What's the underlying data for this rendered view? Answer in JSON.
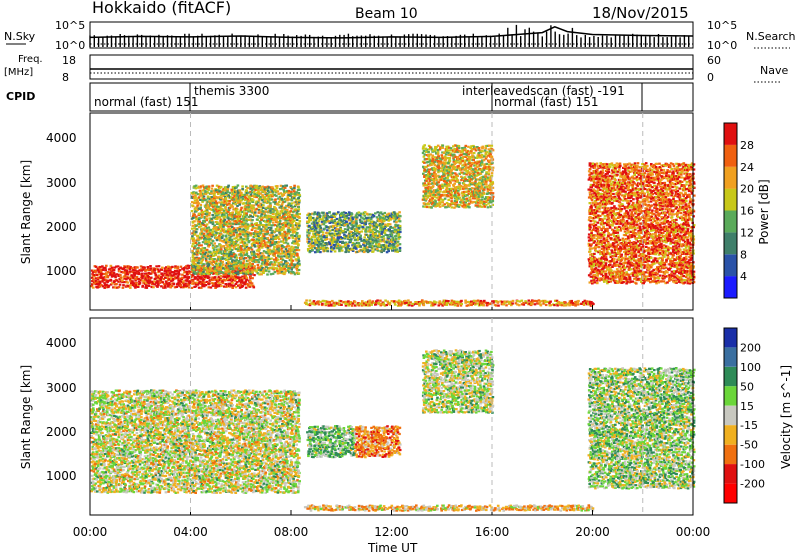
{
  "header": {
    "title": "Hokkaido (fitACF)",
    "beam": "Beam 10",
    "date": "18/Nov/2015"
  },
  "top_panel": {
    "left_label": "N.Sky",
    "left_ticks": [
      "10^5",
      "10^0"
    ],
    "right_label": "N.Search",
    "right_ticks": [
      "10^5",
      "10^0"
    ]
  },
  "freq_panel": {
    "left_label_1": "Freq.",
    "left_label_2": "[MHz]",
    "left_ticks": [
      "18",
      "8"
    ],
    "right_label": "Nave",
    "right_ticks": [
      "60",
      "0"
    ]
  },
  "cpid": {
    "label": "CPID",
    "entries": [
      {
        "text": "normal (fast) 151",
        "row": "lower"
      },
      {
        "text": "themis 3300",
        "row": "upper"
      },
      {
        "text": "interleavedscan (fast) -191",
        "row": "upper"
      },
      {
        "text": "normal (fast) 151",
        "row": "lower"
      }
    ]
  },
  "power_panel": {
    "ylabel": "Slant Range [km]",
    "yticks": [
      "1000",
      "2000",
      "3000",
      "4000"
    ],
    "colorbar_label": "Power [dB]",
    "colorbar_ticks": [
      "4",
      "8",
      "12",
      "16",
      "20",
      "24",
      "28"
    ],
    "colorbar_colors": [
      "#1b1bff",
      "#2a52a8",
      "#3f7f6a",
      "#5aaa5a",
      "#c8c819",
      "#f0a020",
      "#f06010",
      "#e01010"
    ]
  },
  "velocity_panel": {
    "ylabel": "Slant Range [km]",
    "yticks": [
      "1000",
      "2000",
      "3000",
      "4000"
    ],
    "colorbar_label": "Velocity [m s^-1]",
    "colorbar_ticks": [
      "200",
      "100",
      "50",
      "15",
      "-15",
      "-50",
      "-100",
      "-200"
    ],
    "colorbar_colors": [
      "#1a2fa8",
      "#3a6fa0",
      "#2e8b57",
      "#6bd63a",
      "#c8c8c0",
      "#f0b020",
      "#f07010",
      "#e01010",
      "#ff0000"
    ]
  },
  "xaxis": {
    "label": "Time UT",
    "ticks": [
      "00:00",
      "04:00",
      "08:00",
      "12:00",
      "16:00",
      "20:00",
      "00:00"
    ]
  },
  "chart_data": [
    {
      "type": "line",
      "title": "",
      "xlabel": "",
      "ylabel": "N.Sky",
      "x_range_hours": [
        0,
        24
      ],
      "series": [
        {
          "name": "N.Sky",
          "x": [
            0,
            2,
            4,
            6,
            8,
            10,
            12,
            14,
            16,
            17,
            18,
            18.5,
            19,
            20,
            22,
            24
          ],
          "y": [
            2,
            2.2,
            2.1,
            2.3,
            2.0,
            1.9,
            2.1,
            2.0,
            2.2,
            2.6,
            3.0,
            4.2,
            3.2,
            2.6,
            2.4,
            2.3
          ]
        },
        {
          "name": "N.Search",
          "x": [
            0,
            24
          ],
          "y": [
            0.6,
            0.6
          ]
        }
      ],
      "ylim_log10": [
        0,
        5
      ]
    },
    {
      "type": "line",
      "ylabel": "Freq. [MHz]",
      "x_range_hours": [
        0,
        24
      ],
      "series": [
        {
          "name": "Freq",
          "x": [
            0,
            24
          ],
          "y": [
            11,
            11
          ]
        },
        {
          "name": "Nave",
          "x": [
            0,
            24
          ],
          "y": [
            14,
            14
          ]
        }
      ],
      "ylim": [
        8,
        18
      ]
    },
    {
      "type": "heatmap",
      "title": "Power [dB]",
      "xlabel": "Time UT",
      "ylabel": "Slant Range [km]",
      "x_range_hours": [
        0,
        24
      ],
      "ylim": [
        180,
        4600
      ],
      "clim": [
        0,
        32
      ],
      "regions": [
        {
          "t": [
            0,
            6.5
          ],
          "r": [
            700,
            1200
          ],
          "power": 30
        },
        {
          "t": [
            4,
            8.3
          ],
          "r": [
            1000,
            3000
          ],
          "power": 18
        },
        {
          "t": [
            8.6,
            12.3
          ],
          "r": [
            1500,
            2400
          ],
          "power": 14
        },
        {
          "t": [
            13.2,
            16.0
          ],
          "r": [
            2500,
            3900
          ],
          "power": 20
        },
        {
          "t": [
            19.8,
            24.0
          ],
          "r": [
            800,
            3500
          ],
          "power": 26
        },
        {
          "t": [
            8.5,
            20.0
          ],
          "r": [
            300,
            420
          ],
          "power": 24
        }
      ]
    },
    {
      "type": "heatmap",
      "title": "Velocity [m s^-1]",
      "xlabel": "Time UT",
      "ylabel": "Slant Range [km]",
      "x_range_hours": [
        0,
        24
      ],
      "ylim": [
        180,
        4600
      ],
      "clim": [
        -200,
        200
      ],
      "regions": [
        {
          "t": [
            0,
            8.3
          ],
          "r": [
            700,
            3000
          ],
          "velocity": 0
        },
        {
          "t": [
            8.6,
            10.5
          ],
          "r": [
            1500,
            2200
          ],
          "velocity": 40
        },
        {
          "t": [
            10.5,
            12.3
          ],
          "r": [
            1500,
            2200
          ],
          "velocity": -60
        },
        {
          "t": [
            13.2,
            16.0
          ],
          "r": [
            2500,
            3900
          ],
          "velocity": 10
        },
        {
          "t": [
            19.8,
            24.0
          ],
          "r": [
            800,
            3500
          ],
          "velocity": 20
        },
        {
          "t": [
            8.5,
            20.0
          ],
          "r": [
            300,
            420
          ],
          "velocity": -30
        }
      ]
    }
  ]
}
